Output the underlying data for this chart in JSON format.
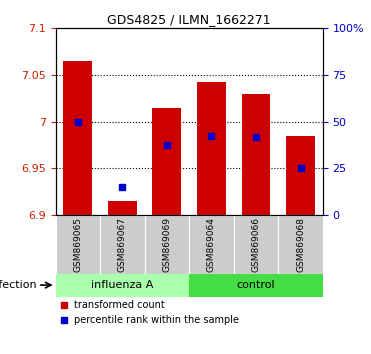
{
  "title": "GDS4825 / ILMN_1662271",
  "samples": [
    "GSM869065",
    "GSM869067",
    "GSM869069",
    "GSM869064",
    "GSM869066",
    "GSM869068"
  ],
  "groups": [
    "influenza A",
    "influenza A",
    "influenza A",
    "control",
    "control",
    "control"
  ],
  "bar_bottom": 6.9,
  "bar_tops": [
    7.065,
    6.915,
    7.015,
    7.042,
    7.03,
    6.985
  ],
  "percentile_values": [
    7.0,
    6.93,
    6.975,
    6.985,
    6.984,
    6.95
  ],
  "ylim": [
    6.9,
    7.1
  ],
  "yticks": [
    6.9,
    6.95,
    7.0,
    7.05,
    7.1
  ],
  "ytick_labels": [
    "6.9",
    "6.95",
    "7",
    "7.05",
    "7.1"
  ],
  "y2ticks": [
    0,
    25,
    50,
    75,
    100
  ],
  "y2tick_labels": [
    "0",
    "25",
    "50",
    "75",
    "100%"
  ],
  "bar_color": "#cc0000",
  "blue_color": "#0000cc",
  "infection_label": "infection",
  "legend_red": "transformed count",
  "legend_blue": "percentile rank within the sample",
  "tick_label_color_left": "#cc2200",
  "tick_label_color_right": "#0000cc",
  "bar_width": 0.65,
  "xlabel_bg_color": "#cccccc",
  "influenza_bg": "#aaffaa",
  "control_bg": "#44dd44",
  "title_fontsize": 9
}
